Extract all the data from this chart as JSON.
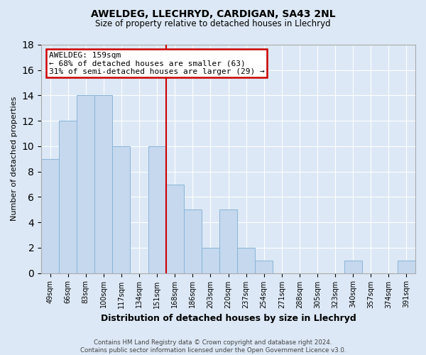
{
  "title1": "AWELDEG, LLECHRYD, CARDIGAN, SA43 2NL",
  "title2": "Size of property relative to detached houses in Llechryd",
  "xlabel": "Distribution of detached houses by size in Llechryd",
  "ylabel": "Number of detached properties",
  "footer": "Contains HM Land Registry data © Crown copyright and database right 2024.\nContains public sector information licensed under the Open Government Licence v3.0.",
  "bar_values": [
    9,
    12,
    14,
    14,
    10,
    0,
    10,
    7,
    5,
    2,
    5,
    2,
    1,
    0,
    0,
    0,
    0,
    1,
    0,
    0,
    1
  ],
  "bar_labels": [
    "49sqm",
    "66sqm",
    "83sqm",
    "100sqm",
    "117sqm",
    "134sqm",
    "151sqm",
    "168sqm",
    "186sqm",
    "203sqm",
    "220sqm",
    "237sqm",
    "254sqm",
    "271sqm",
    "288sqm",
    "305sqm",
    "323sqm",
    "340sqm",
    "357sqm",
    "374sqm",
    "391sqm"
  ],
  "bar_color": "#c5d8ee",
  "bar_edge_color": "#88b4d8",
  "ylim": [
    0,
    18
  ],
  "yticks": [
    0,
    2,
    4,
    6,
    8,
    10,
    12,
    14,
    16,
    18
  ],
  "vline_x_idx": 6.5,
  "vline_color": "#cc0000",
  "annotation_line1": "AWELDEG: 159sqm",
  "annotation_line2": "← 68% of detached houses are smaller (63)",
  "annotation_line3": "31% of semi-detached houses are larger (29) →",
  "annotation_box_color": "#cc0000",
  "background_color": "#dce8f5",
  "grid_color": "#ffffff",
  "spine_color": "#aaaaaa"
}
